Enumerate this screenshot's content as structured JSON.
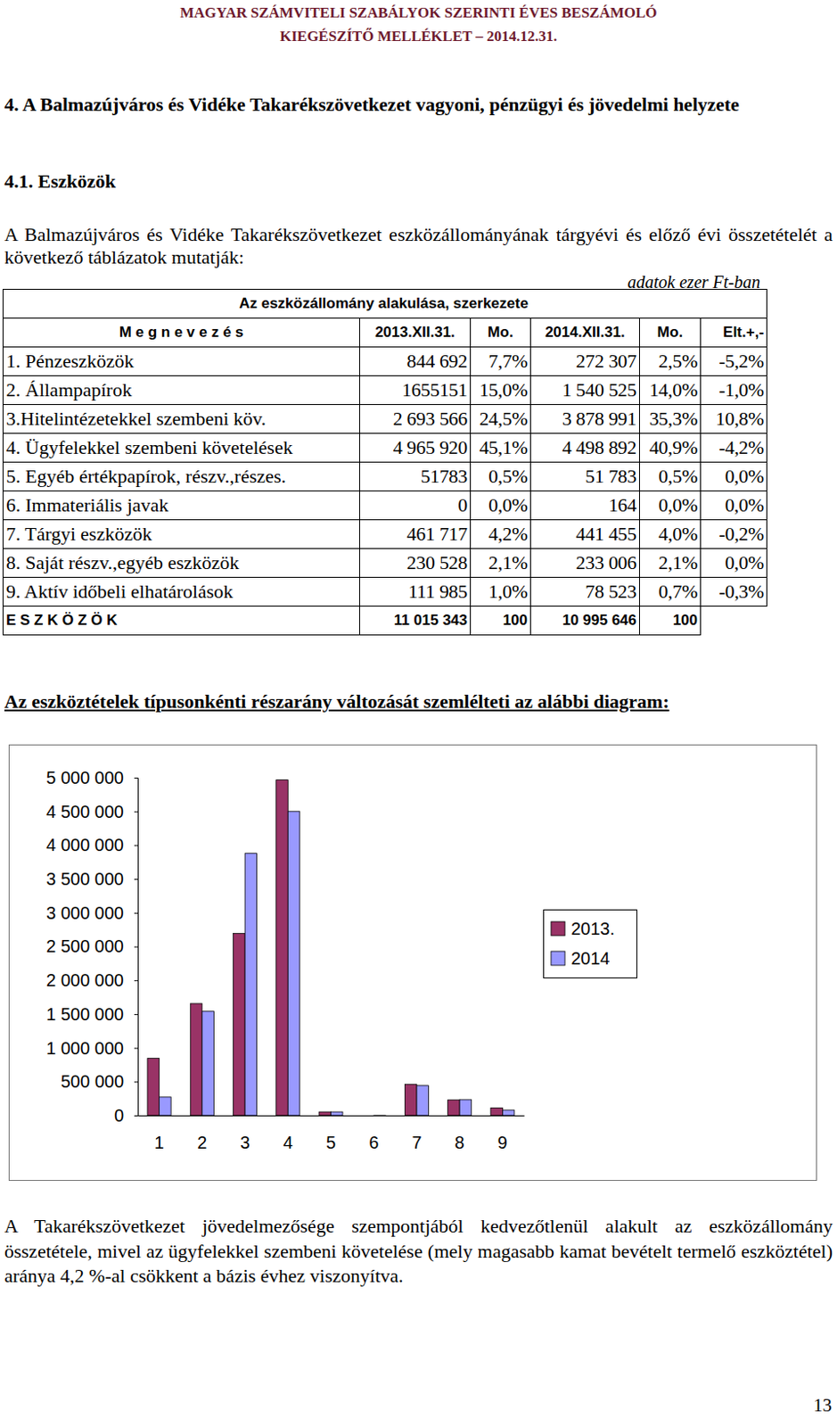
{
  "header": {
    "line1": "MAGYAR SZÁMVITELI SZABÁLYOK SZERINTI ÉVES BESZÁMOLÓ",
    "line2": "KIEGÉSZÍTŐ MELLÉKLET – 2014.12.31."
  },
  "section_title": "4. A Balmazújváros és Vidéke Takarékszövetkezet vagyoni, pénzügyi és jövedelmi helyzete",
  "subsection_title": "4.1. Eszközök",
  "intro": "A Balmazújváros és Vidéke Takarékszövetkezet eszközállományának tárgyévi és előző évi összetételét a következő táblázatok mutatják:",
  "unit_note": "adatok ezer Ft-ban",
  "table": {
    "title": "Az eszközállomány alakulása, szerkezete",
    "columns": [
      "M e g n e v e z é s",
      "2013.XII.31.",
      "Mo.",
      "2014.XII.31.",
      "Mo.",
      "Elt.+,-"
    ],
    "rows": [
      [
        "1. Pénzeszközök",
        "844 692",
        "7,7%",
        "272 307",
        "2,5%",
        "-5,2%"
      ],
      [
        "2. Állampapírok",
        "1655151",
        "15,0%",
        "1 540 525",
        "14,0%",
        "-1,0%"
      ],
      [
        "3.Hitelintézetekkel szembeni köv.",
        "2 693 566",
        "24,5%",
        "3 878 991",
        "35,3%",
        "10,8%"
      ],
      [
        "4. Ügyfelekkel szembeni követelések",
        "4 965 920",
        "45,1%",
        "4 498 892",
        "40,9%",
        "-4,2%"
      ],
      [
        "5. Egyéb értékpapírok, részv.,részes.",
        "51783",
        "0,5%",
        "51 783",
        "0,5%",
        "0,0%"
      ],
      [
        "6. Immateriális javak",
        "0",
        "0,0%",
        "164",
        "0,0%",
        "0,0%"
      ],
      [
        "7. Tárgyi eszközök",
        "461 717",
        "4,2%",
        "441 455",
        "4,0%",
        "-0,2%"
      ],
      [
        "8. Saját részv.,egyéb eszközök",
        "230 528",
        "2,1%",
        "233 006",
        "2,1%",
        "0,0%"
      ],
      [
        "9. Aktív időbeli elhatárolások",
        "111 985",
        "1,0%",
        "78 523",
        "0,7%",
        "-0,3%"
      ]
    ],
    "total": [
      "E S Z K Ö Z Ö K",
      "11 015 343",
      "100",
      "10 995 646",
      "100"
    ]
  },
  "diagram_caption": "Az eszköztételek típusonkénti részarány változását szemlélteti az alábbi diagram:",
  "chart_data": {
    "type": "bar",
    "categories": [
      "1",
      "2",
      "3",
      "4",
      "5",
      "6",
      "7",
      "8",
      "9"
    ],
    "series": [
      {
        "name": "2013.",
        "color": "#993366",
        "values": [
          844692,
          1655151,
          2693566,
          4965920,
          51783,
          0,
          461717,
          230528,
          111985
        ]
      },
      {
        "name": "2014",
        "color": "#9999ff",
        "values": [
          272307,
          1540525,
          3878991,
          4498892,
          51783,
          164,
          441455,
          233006,
          78523
        ]
      }
    ],
    "ylim": [
      0,
      5000000
    ],
    "yticks": [
      0,
      {
        "value": 500000,
        "label": "500 000"
      },
      {
        "value": 1000000,
        "label": "1 000 000"
      },
      {
        "value": 1500000,
        "label": "1 500 000"
      },
      {
        "value": 2000000,
        "label": "2 000 000"
      },
      {
        "value": 2500000,
        "label": "2 500 000"
      },
      {
        "value": 3000000,
        "label": "3 000 000"
      },
      {
        "value": 3500000,
        "label": "3 500 000"
      },
      {
        "value": 4000000,
        "label": "4 000 000"
      },
      {
        "value": 4500000,
        "label": "4 500 000"
      },
      {
        "value": 5000000,
        "label": "5 000 000"
      }
    ],
    "grid": false,
    "legend": "right"
  },
  "conclusion": "A Takarékszövetkezet jövedelmezősége szempontjából kedvezőtlenül alakult az eszközállomány összetétele, mivel az ügyfelekkel szembeni követelése (mely magasabb kamat bevételt termelő eszköztétel) aránya 4,2 %-al csökkent a bázis évhez viszonyítva.",
  "page_number": "13"
}
